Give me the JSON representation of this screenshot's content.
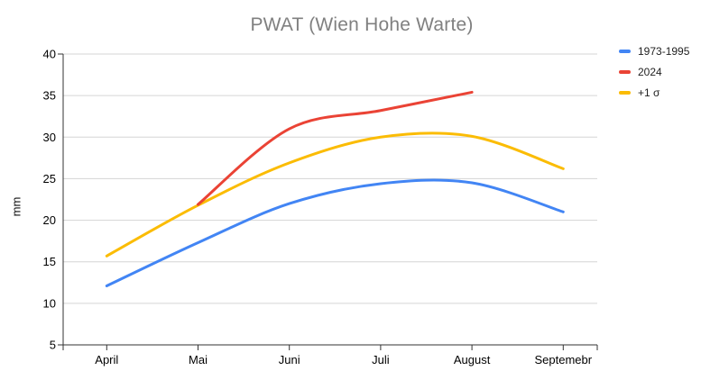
{
  "chart_data": {
    "type": "line",
    "title": "PWAT (Wien Hohe Warte)",
    "xlabel": "",
    "ylabel": "mm",
    "categories": [
      "April",
      "Mai",
      "Juni",
      "Juli",
      "August",
      "Septemebr"
    ],
    "series": [
      {
        "name": "1973-1995",
        "color": "#4285F4",
        "values": [
          12.1,
          17.3,
          22.0,
          24.4,
          24.5,
          21.0
        ]
      },
      {
        "name": "2024",
        "color": "#EA4335",
        "values": [
          null,
          21.9,
          31.0,
          33.2,
          35.4,
          null
        ]
      },
      {
        "name": "+1 σ",
        "color": "#FBBC04",
        "values": [
          15.7,
          21.8,
          26.9,
          30.0,
          30.1,
          26.2
        ]
      }
    ],
    "ylim": [
      5,
      40
    ],
    "yticks": [
      5,
      10,
      15,
      20,
      25,
      30,
      35,
      40
    ],
    "grid": true,
    "legend_position": "right",
    "curve": "smooth",
    "line_width": 3,
    "draw_order": [
      0,
      2,
      1
    ],
    "colors": {
      "title": "#808080",
      "gridline": "#d5d5d5",
      "axis": "#333333",
      "tick_label": "#000000",
      "legend_text": "#1f1f1f"
    }
  }
}
